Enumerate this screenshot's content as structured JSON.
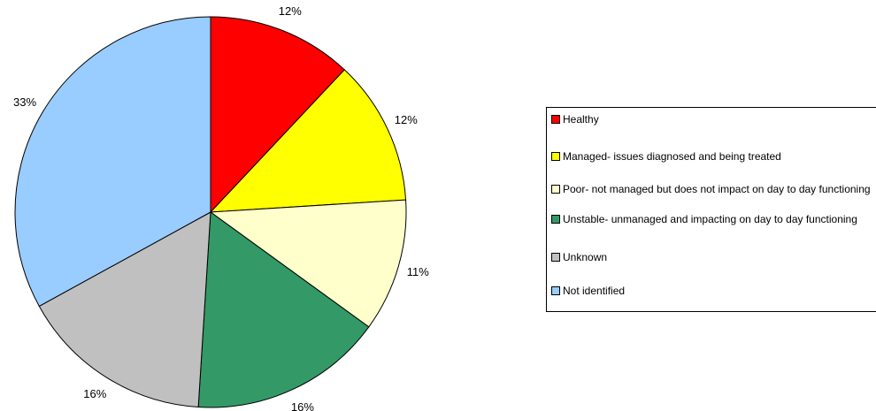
{
  "chart_data": {
    "type": "pie",
    "title": "",
    "slices": [
      {
        "label": "Healthy",
        "value": 12,
        "display": "12%",
        "color": "#ff0000"
      },
      {
        "label": "Managed- issues diagnosed and being treated",
        "value": 12,
        "display": "12%",
        "color": "#ffff00"
      },
      {
        "label": "Poor- not managed but does not impact on day to day functioning",
        "value": 11,
        "display": "11%",
        "color": "#ffffcc"
      },
      {
        "label": "Unstable- unmanaged and impacting on day to day functioning",
        "value": 16,
        "display": "16%",
        "color": "#339966"
      },
      {
        "label": "Unknown",
        "value": 16,
        "display": "16%",
        "color": "#c0c0c0"
      },
      {
        "label": "Not identified",
        "value": 33,
        "display": "33%",
        "color": "#99ccff"
      }
    ],
    "legend_position": "right"
  }
}
